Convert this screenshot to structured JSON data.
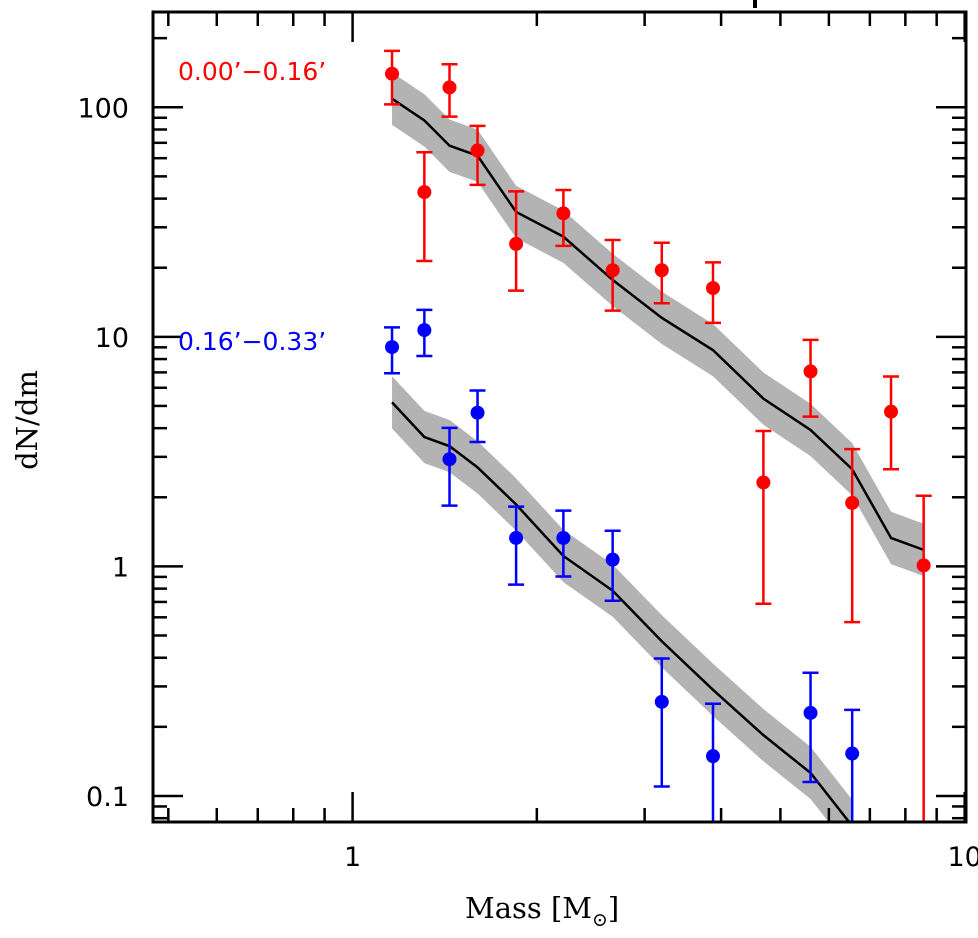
{
  "chart_data": {
    "type": "scatter",
    "title": "",
    "xlabel": "Mass [M☉]",
    "xlabel_text": "Mass [M",
    "xlabel_sub": "⊙",
    "xlabel_close": "]",
    "ylabel": "dN/dm",
    "xscale": "log",
    "yscale": "log",
    "xlim": [
      0.472,
      10.05
    ],
    "ylim": [
      0.077,
      260
    ],
    "grid": false,
    "x_ticks": [
      {
        "value": 1,
        "label": "1"
      },
      {
        "value": 10,
        "label": "10"
      }
    ],
    "y_ticks": [
      {
        "value": 0.1,
        "label": "0.1"
      },
      {
        "value": 1,
        "label": "1"
      },
      {
        "value": 10,
        "label": "10"
      },
      {
        "value": 100,
        "label": "100"
      }
    ],
    "series": [
      {
        "name": "0.00'–0.16'",
        "label": "0.00’−0.16’",
        "color": "#ff0000",
        "x": [
          1.16,
          1.31,
          1.44,
          1.6,
          1.85,
          2.21,
          2.66,
          3.2,
          3.88,
          4.69,
          5.6,
          6.55,
          7.58,
          8.57
        ],
        "y": [
          140,
          42.7,
          122,
          64.8,
          25.4,
          34.5,
          19.5,
          19.5,
          16.3,
          2.32,
          7.07,
          1.89,
          4.72,
          1.01
        ],
        "y_err_low": [
          103,
          21.4,
          91,
          45.9,
          15.9,
          24.9,
          13.0,
          14.0,
          11.5,
          0.687,
          4.49,
          0.572,
          2.65,
          0.05
        ],
        "y_err_high": [
          176,
          63.7,
          154,
          83,
          43,
          43.6,
          26.4,
          25.7,
          21.1,
          3.89,
          9.7,
          3.24,
          6.72,
          2.03
        ]
      },
      {
        "name": "0.16'–0.33'",
        "label": "0.16’−0.33’",
        "color": "#0000ff",
        "x": [
          1.16,
          1.31,
          1.44,
          1.6,
          1.85,
          2.21,
          2.66,
          3.2,
          3.88,
          5.6,
          6.55
        ],
        "y": [
          9.02,
          10.7,
          2.93,
          4.67,
          1.33,
          1.33,
          1.07,
          0.257,
          0.149,
          0.23,
          0.153
        ],
        "y_err_low": [
          6.94,
          8.25,
          1.84,
          3.48,
          0.833,
          0.903,
          0.708,
          0.11,
          0.05,
          0.115,
          0.05
        ],
        "y_err_high": [
          11.0,
          13.1,
          4.01,
          5.84,
          1.82,
          1.75,
          1.43,
          0.397,
          0.252,
          0.344,
          0.237
        ]
      }
    ],
    "models": [
      {
        "name": "model-0.00-0.16",
        "line_color": "#000000",
        "band_color": "#b3b3b3",
        "band_factor": 1.3,
        "x": [
          1.16,
          1.31,
          1.44,
          1.6,
          1.85,
          2.21,
          2.66,
          3.2,
          3.88,
          4.69,
          5.6,
          6.55,
          7.58,
          8.57
        ],
        "y": [
          109,
          87.6,
          68,
          61.5,
          35,
          27.3,
          17.7,
          12.1,
          8.75,
          5.38,
          3.93,
          2.65,
          1.33,
          1.18
        ]
      },
      {
        "name": "model-0.16-0.33",
        "line_color": "#000000",
        "band_color": "#b3b3b3",
        "band_factor": 1.3,
        "x": [
          1.16,
          1.31,
          1.44,
          1.6,
          1.85,
          2.21,
          2.66,
          3.2,
          3.88,
          4.69,
          5.6,
          6.55
        ],
        "y": [
          5.18,
          3.66,
          3.34,
          2.7,
          1.86,
          1.11,
          0.784,
          0.472,
          0.29,
          0.184,
          0.126,
          0.074
        ]
      }
    ]
  }
}
